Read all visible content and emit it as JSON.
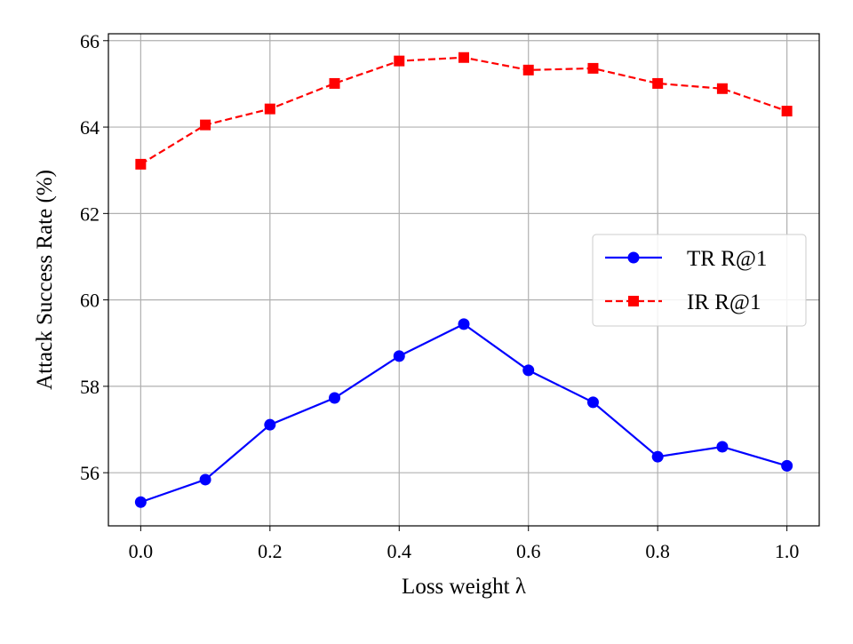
{
  "chart_data": {
    "type": "line",
    "xlabel": "Loss weight λ",
    "ylabel": "Attack Success Rate (%)",
    "xlim": [
      -0.05,
      1.05
    ],
    "ylim": [
      54.77,
      66.16
    ],
    "xticks": [
      "0.0",
      "0.2",
      "0.4",
      "0.6",
      "0.8",
      "1.0"
    ],
    "yticks": [
      "56",
      "58",
      "60",
      "62",
      "64",
      "66"
    ],
    "grid": true,
    "legend_position": "right",
    "x": [
      0.0,
      0.1,
      0.2,
      0.3,
      0.4,
      0.5,
      0.6,
      0.7,
      0.8,
      0.9,
      1.0
    ],
    "series": [
      {
        "name": "TR R@1",
        "color": "#0000ff",
        "marker": "circle",
        "linestyle": "solid",
        "values": [
          55.32,
          55.84,
          57.11,
          57.73,
          58.7,
          59.44,
          58.37,
          57.63,
          56.37,
          56.6,
          56.16
        ]
      },
      {
        "name": "IR R@1",
        "color": "#ff0000",
        "marker": "square",
        "linestyle": "dashed",
        "values": [
          63.14,
          64.05,
          64.42,
          65.01,
          65.53,
          65.61,
          65.32,
          65.36,
          65.01,
          64.89,
          64.37
        ]
      }
    ]
  }
}
